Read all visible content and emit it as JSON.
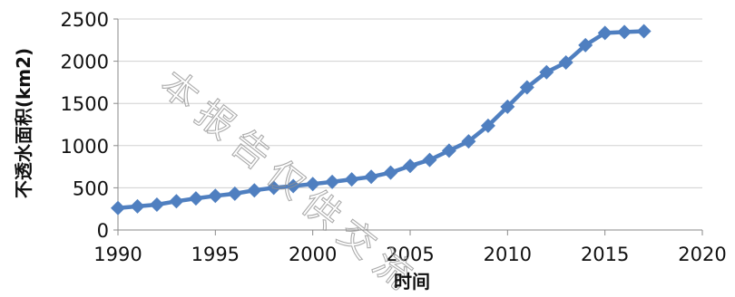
{
  "chart_data": {
    "type": "line",
    "title": "",
    "xlabel": "时间",
    "ylabel": "不透水面积(km2)",
    "xlim": [
      1990,
      2020
    ],
    "ylim": [
      0,
      2500
    ],
    "x_ticks": [
      1990,
      1995,
      2000,
      2005,
      2010,
      2015,
      2020
    ],
    "y_ticks": [
      0,
      500,
      1000,
      1500,
      2000,
      2500
    ],
    "grid": "horizontal",
    "legend": "none",
    "marker": "diamond",
    "color": "#4F7FC0",
    "series": [
      {
        "x": [
          1990,
          1991,
          1992,
          1993,
          1994,
          1995,
          1996,
          1997,
          1998,
          1999,
          2000,
          2001,
          2002,
          2003,
          2004,
          2005,
          2006,
          2007,
          2008,
          2009,
          2010,
          2011,
          2012,
          2013,
          2014,
          2015,
          2016,
          2017
        ],
        "values": [
          260,
          280,
          300,
          340,
          375,
          405,
          430,
          470,
          500,
          520,
          545,
          570,
          600,
          630,
          680,
          760,
          830,
          940,
          1050,
          1235,
          1460,
          1690,
          1870,
          1985,
          2190,
          2335,
          2345,
          2355
        ]
      }
    ]
  },
  "watermark": {
    "text": "本报告仅供交流"
  }
}
